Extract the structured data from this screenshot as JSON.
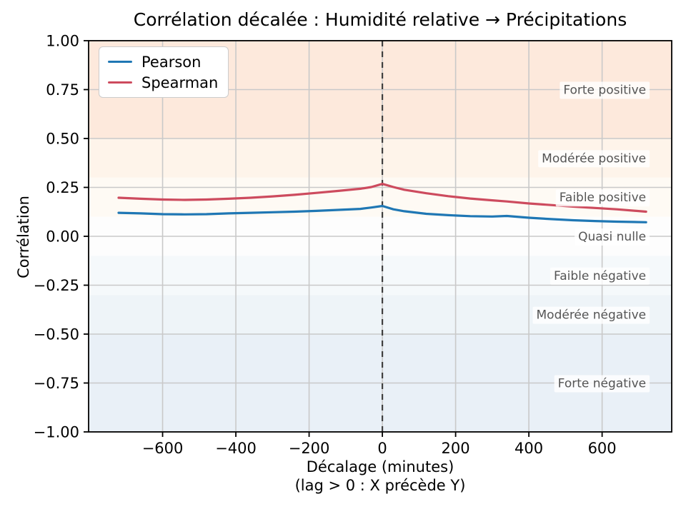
{
  "figure": {
    "title": "Corrélation décalée : Humidité relative → Précipitations",
    "ylabel": "Corrélation",
    "xlabel_line1": "Décalage (minutes)",
    "xlabel_line2": "(lag > 0 : X précède Y)"
  },
  "legend": {
    "position": "upper left",
    "items": [
      {
        "label": "Pearson",
        "color": "#1f77b4"
      },
      {
        "label": "Spearman",
        "color": "#cd4b5e"
      }
    ]
  },
  "chart_data": {
    "type": "line",
    "title": "Corrélation décalée : Humidité relative → Précipitations",
    "xlabel": "Décalage (minutes) (lag > 0 : X précède Y)",
    "ylabel": "Corrélation",
    "xlim": [
      -802,
      790
    ],
    "ylim": [
      -1.0,
      1.0
    ],
    "grid": true,
    "grid_color": "#c9c9c9",
    "spine_color": "#000000",
    "background_color": "#ffffff",
    "x_ticks": [
      {
        "value": -600,
        "label": "−600"
      },
      {
        "value": -400,
        "label": "−400"
      },
      {
        "value": -200,
        "label": "−200"
      },
      {
        "value": 0,
        "label": "0"
      },
      {
        "value": 200,
        "label": "200"
      },
      {
        "value": 400,
        "label": "400"
      },
      {
        "value": 600,
        "label": "600"
      }
    ],
    "y_ticks": [
      {
        "value": 1.0,
        "label": "1.00"
      },
      {
        "value": 0.75,
        "label": "0.75"
      },
      {
        "value": 0.5,
        "label": "0.50"
      },
      {
        "value": 0.25,
        "label": "0.25"
      },
      {
        "value": 0.0,
        "label": "0.00"
      },
      {
        "value": -0.25,
        "label": "−0.25"
      },
      {
        "value": -0.5,
        "label": "−0.50"
      },
      {
        "value": -0.75,
        "label": "−0.75"
      },
      {
        "value": -1.0,
        "label": "−1.00"
      }
    ],
    "zero_lag_line": {
      "x": 0,
      "style": "dashed",
      "color": "#404040"
    },
    "x": [
      -720,
      -660,
      -600,
      -540,
      -480,
      -420,
      -360,
      -300,
      -240,
      -180,
      -120,
      -60,
      -30,
      0,
      30,
      60,
      120,
      180,
      240,
      300,
      340,
      400,
      460,
      520,
      580,
      640,
      720
    ],
    "series": [
      {
        "name": "Pearson",
        "color": "#1f77b4",
        "values": [
          0.12,
          0.117,
          0.113,
          0.112,
          0.113,
          0.117,
          0.12,
          0.123,
          0.126,
          0.13,
          0.135,
          0.14,
          0.147,
          0.155,
          0.138,
          0.128,
          0.115,
          0.108,
          0.103,
          0.101,
          0.104,
          0.095,
          0.088,
          0.082,
          0.078,
          0.075,
          0.072
        ]
      },
      {
        "name": "Spearman",
        "color": "#cd4b5e",
        "values": [
          0.197,
          0.192,
          0.188,
          0.186,
          0.188,
          0.192,
          0.197,
          0.204,
          0.212,
          0.222,
          0.232,
          0.243,
          0.252,
          0.268,
          0.252,
          0.238,
          0.22,
          0.205,
          0.193,
          0.184,
          0.178,
          0.168,
          0.16,
          0.152,
          0.145,
          0.138,
          0.126
        ]
      }
    ],
    "bands": [
      {
        "label": "Forte positive",
        "from": 0.5,
        "to": 1.0,
        "color": "#fde9dc",
        "label_y": 0.75
      },
      {
        "label": "Modérée positive",
        "from": 0.3,
        "to": 0.5,
        "color": "#fef4ea",
        "label_y": 0.4
      },
      {
        "label": "Faible positive",
        "from": 0.1,
        "to": 0.3,
        "color": "#fefaf4",
        "label_y": 0.2
      },
      {
        "label": "Quasi nulle",
        "from": -0.1,
        "to": 0.1,
        "color": "#fdfdfd",
        "label_y": 0.0
      },
      {
        "label": "Faible négative",
        "from": -0.3,
        "to": -0.1,
        "color": "#f5f9fb",
        "label_y": -0.2
      },
      {
        "label": "Modérée négative",
        "from": -0.5,
        "to": -0.3,
        "color": "#eef4f8",
        "label_y": -0.4
      },
      {
        "label": "Forte négative",
        "from": -1.0,
        "to": -0.5,
        "color": "#e9f0f7",
        "label_y": -0.75
      }
    ],
    "band_label_x": 720,
    "band_label_color": "#555555"
  }
}
